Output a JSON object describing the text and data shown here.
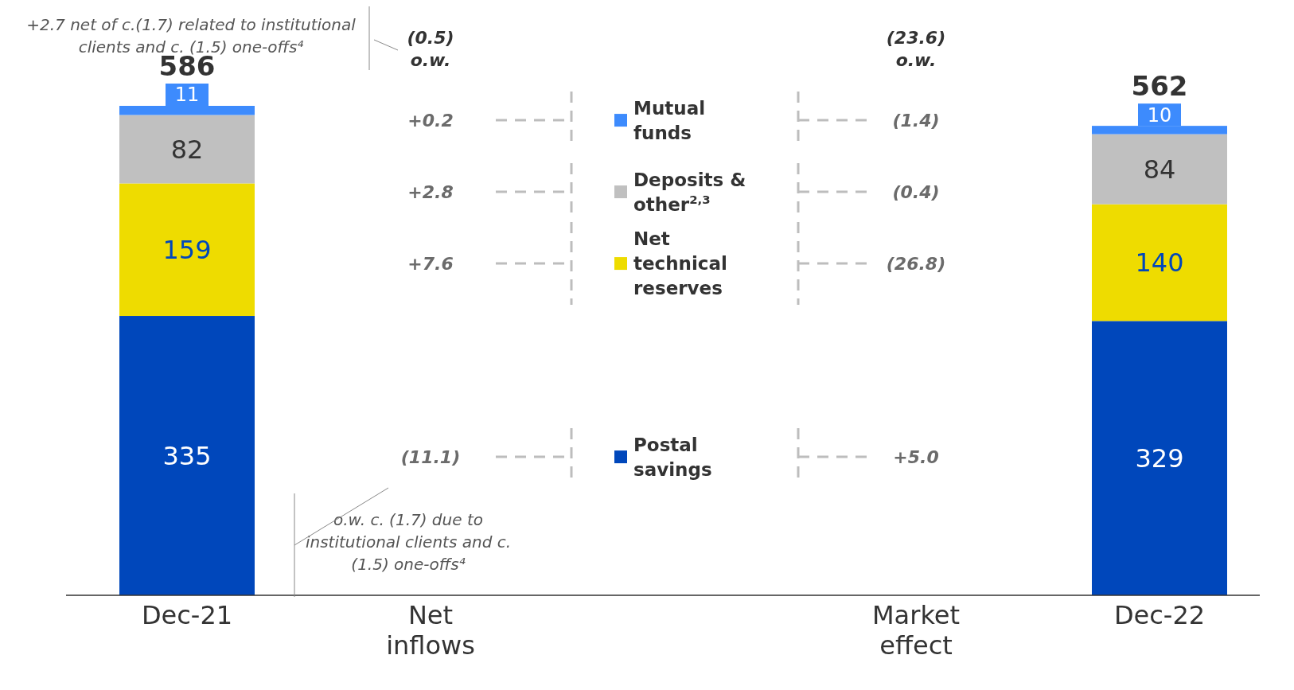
{
  "chart_data": {
    "type": "bar",
    "stacked": true,
    "legend": "center",
    "categories": [
      "Dec-21",
      "Net inflows",
      "Market effect",
      "Dec-22"
    ],
    "series": [
      {
        "name": "Postal savings",
        "color": "#0047bb",
        "values": [
          335,
          null,
          null,
          329
        ],
        "value_labels": [
          "335",
          "(11.1)",
          "+5.0",
          "329"
        ]
      },
      {
        "name": "Net technical reserves",
        "color": "#eedc00",
        "values": [
          159,
          null,
          null,
          140
        ],
        "value_labels": [
          "159",
          "+7.6",
          "(26.8)",
          "140"
        ]
      },
      {
        "name": "Deposits & other$^{2,3}$",
        "color": "#c0c0c0",
        "values": [
          82,
          null,
          null,
          84
        ],
        "value_labels": [
          "82",
          "+2.8",
          "(0.4)",
          "84"
        ]
      },
      {
        "name": "Mutual funds",
        "color": "#3d8bfd",
        "values": [
          11,
          null,
          null,
          10
        ],
        "value_labels": [
          "11",
          "+0.2",
          "(1.4)",
          "10"
        ]
      }
    ],
    "totals": [
      "586",
      null,
      null,
      "562"
    ],
    "annotations": [
      "+2.7 net of c.(1.7) related to institutional clients and c. (1.5) one-offs⁴",
      "o.w. c. (1.7) due to institutional clients and c. (1.5) one-offs⁴",
      "(0.5)\no.w.",
      "(23.6)\no.w."
    ]
  }
}
